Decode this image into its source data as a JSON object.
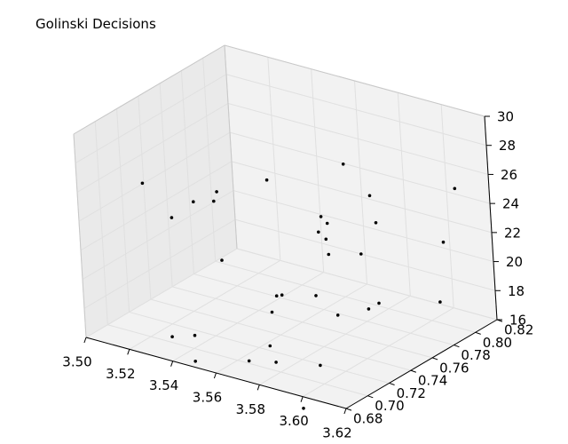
{
  "figure": {
    "title": "Golinski Decisions"
  },
  "chart_data": {
    "type": "scatter",
    "title": "Golinski Decisions",
    "projection": "3d",
    "grid": true,
    "marker_color": "#000000",
    "pane_color": "#f2f2f2",
    "axes": {
      "x": {
        "label": "",
        "range": [
          3.5,
          3.62
        ],
        "ticks": [
          "3.50",
          "3.52",
          "3.54",
          "3.56",
          "3.58",
          "3.60",
          "3.62"
        ]
      },
      "y": {
        "label": "",
        "range": [
          0.68,
          0.82
        ],
        "ticks": [
          "0.68",
          "0.70",
          "0.72",
          "0.74",
          "0.76",
          "0.78",
          "0.80",
          "0.82"
        ]
      },
      "z": {
        "label": "",
        "range": [
          16,
          30
        ],
        "ticks": [
          "16",
          "18",
          "20",
          "22",
          "24",
          "26",
          "28",
          "30"
        ]
      }
    },
    "points": [
      {
        "x": 3.502,
        "y": 0.735,
        "z": 24.3
      },
      {
        "x": 3.52,
        "y": 0.725,
        "z": 23.1
      },
      {
        "x": 3.528,
        "y": 0.73,
        "z": 24.3
      },
      {
        "x": 3.534,
        "y": 0.74,
        "z": 24.8
      },
      {
        "x": 3.535,
        "y": 0.735,
        "z": 24.4
      },
      {
        "x": 3.55,
        "y": 0.755,
        "z": 25.6
      },
      {
        "x": 3.545,
        "y": 0.72,
        "z": 21.4
      },
      {
        "x": 3.566,
        "y": 0.727,
        "z": 19.5
      },
      {
        "x": 3.568,
        "y": 0.728,
        "z": 19.6
      },
      {
        "x": 3.566,
        "y": 0.722,
        "z": 18.6
      },
      {
        "x": 3.575,
        "y": 0.745,
        "z": 19.1
      },
      {
        "x": 3.573,
        "y": 0.705,
        "z": 17.3
      },
      {
        "x": 3.568,
        "y": 0.695,
        "z": 16.5
      },
      {
        "x": 3.578,
        "y": 0.7,
        "z": 16.6
      },
      {
        "x": 3.548,
        "y": 0.685,
        "z": 16.1
      },
      {
        "x": 3.53,
        "y": 0.7,
        "z": 16.4
      },
      {
        "x": 3.538,
        "y": 0.705,
        "z": 16.6
      },
      {
        "x": 3.596,
        "y": 0.705,
        "z": 16.9
      },
      {
        "x": 3.6,
        "y": 0.68,
        "z": 15.2
      },
      {
        "x": 3.59,
        "y": 0.735,
        "z": 18.8
      },
      {
        "x": 3.602,
        "y": 0.74,
        "z": 19.5
      },
      {
        "x": 3.607,
        "y": 0.74,
        "z": 20.1
      },
      {
        "x": 3.568,
        "y": 0.79,
        "z": 25.9
      },
      {
        "x": 3.585,
        "y": 0.74,
        "z": 24.7
      },
      {
        "x": 3.577,
        "y": 0.75,
        "z": 24.4
      },
      {
        "x": 3.585,
        "y": 0.738,
        "z": 23.7
      },
      {
        "x": 3.578,
        "y": 0.745,
        "z": 23.6
      },
      {
        "x": 3.59,
        "y": 0.73,
        "z": 23.2
      },
      {
        "x": 3.6,
        "y": 0.755,
        "z": 24.7
      },
      {
        "x": 3.6,
        "y": 0.74,
        "z": 23.2
      },
      {
        "x": 3.617,
        "y": 0.795,
        "z": 26.0
      },
      {
        "x": 3.618,
        "y": 0.78,
        "z": 23.0
      },
      {
        "x": 3.62,
        "y": 0.77,
        "z": 19.4
      },
      {
        "x": 3.59,
        "y": 0.77,
        "z": 25.5
      }
    ]
  }
}
